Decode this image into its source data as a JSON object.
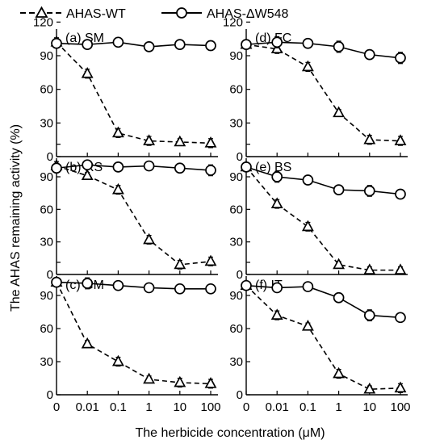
{
  "chart_data": {
    "type": "line",
    "ylabel": "The AHAS remaining activity (%)",
    "xlabel": "The herbicide concentration (μM)",
    "legend": {
      "placement": "top",
      "entries": [
        {
          "series": "wt",
          "label": "AHAS-WT"
        },
        {
          "series": "dw",
          "label": "AHAS-ΔW548"
        }
      ]
    },
    "x_tick_labels": [
      "0",
      "0.01",
      "0.1",
      "1",
      "10",
      "100"
    ],
    "ylim": [
      0,
      120
    ],
    "y_ticks": [
      0,
      30,
      60,
      90,
      120
    ],
    "grid": false,
    "series_styles": {
      "wt": {
        "line": "dashed",
        "marker": "triangle-open",
        "color": "#000000"
      },
      "dw": {
        "line": "solid",
        "marker": "circle-open",
        "color": "#000000"
      }
    },
    "panels": [
      {
        "label": "(a) SM",
        "y_tick_labels": [
          "0",
          "30",
          "60",
          "90",
          "120"
        ],
        "series": [
          {
            "key": "wt",
            "name": "AHAS-WT",
            "values": [
              102,
              74,
              21,
              14,
              13,
              12
            ],
            "errors": [
              4,
              4,
              4,
              4,
              3,
              4
            ]
          },
          {
            "key": "dw",
            "name": "AHAS-ΔW548",
            "values": [
              101,
              100,
              102,
              98,
              100,
              99
            ],
            "errors": [
              4,
              3,
              4,
              4,
              4,
              4
            ]
          }
        ]
      },
      {
        "label": "(b) RS",
        "y_tick_labels": [
          "0",
          "30",
          "60",
          "90",
          ""
        ],
        "series": [
          {
            "key": "wt",
            "name": "AHAS-WT",
            "values": [
              100,
              91,
              78,
              32,
              9,
              12
            ],
            "errors": [
              4,
              3,
              4,
              4,
              4,
              4
            ]
          },
          {
            "key": "dw",
            "name": "AHAS-ΔW548",
            "values": [
              98,
              101,
              99,
              100,
              98,
              96
            ],
            "errors": [
              4,
              4,
              4,
              3,
              4,
              5
            ]
          }
        ]
      },
      {
        "label": "(c) CM",
        "y_tick_labels": [
          "0",
          "30",
          "60",
          "90",
          ""
        ],
        "series": [
          {
            "key": "wt",
            "name": "AHAS-WT",
            "values": [
              102,
              46,
              30,
              14,
              11,
              10
            ],
            "errors": [
              4,
              3,
              4,
              3,
              4,
              4
            ]
          },
          {
            "key": "dw",
            "name": "AHAS-ΔW548",
            "values": [
              102,
              101,
              99,
              97,
              96,
              96
            ],
            "errors": [
              4,
              5,
              3,
              3,
              4,
              3
            ]
          }
        ]
      },
      {
        "label": "(d) FC",
        "y_tick_labels": [
          "0",
          "30",
          "60",
          "90",
          "120"
        ],
        "series": [
          {
            "key": "wt",
            "name": "AHAS-WT",
            "values": [
              100,
              96,
              80,
              39,
              15,
              14
            ],
            "errors": [
              4,
              4,
              4,
              3,
              4,
              4
            ]
          },
          {
            "key": "dw",
            "name": "AHAS-ΔW548",
            "values": [
              100,
              102,
              101,
              98,
              91,
              88
            ],
            "errors": [
              4,
              5,
              4,
              5,
              4,
              5
            ]
          }
        ]
      },
      {
        "label": "(e) BS",
        "y_tick_labels": [
          "0",
          "30",
          "60",
          "90",
          ""
        ],
        "series": [
          {
            "key": "wt",
            "name": "AHAS-WT",
            "values": [
              99,
              65,
              44,
              9,
              4,
              4
            ],
            "errors": [
              4,
              4,
              4,
              3,
              3,
              3
            ]
          },
          {
            "key": "dw",
            "name": "AHAS-ΔW548",
            "values": [
              99,
              90,
              87,
              78,
              77,
              74
            ],
            "errors": [
              4,
              5,
              3,
              3,
              5,
              4
            ]
          }
        ]
      },
      {
        "label": "(f) IT",
        "y_tick_labels": [
          "0",
          "30",
          "60",
          "90",
          ""
        ],
        "series": [
          {
            "key": "wt",
            "name": "AHAS-WT",
            "values": [
              99,
              72,
              62,
              19,
              5,
              6
            ],
            "errors": [
              4,
              4,
              3,
              4,
              3,
              4
            ]
          },
          {
            "key": "dw",
            "name": "AHAS-ΔW548",
            "values": [
              99,
              97,
              98,
              88,
              72,
              70
            ],
            "errors": [
              4,
              3,
              3,
              4,
              5,
              3
            ]
          }
        ]
      }
    ]
  }
}
